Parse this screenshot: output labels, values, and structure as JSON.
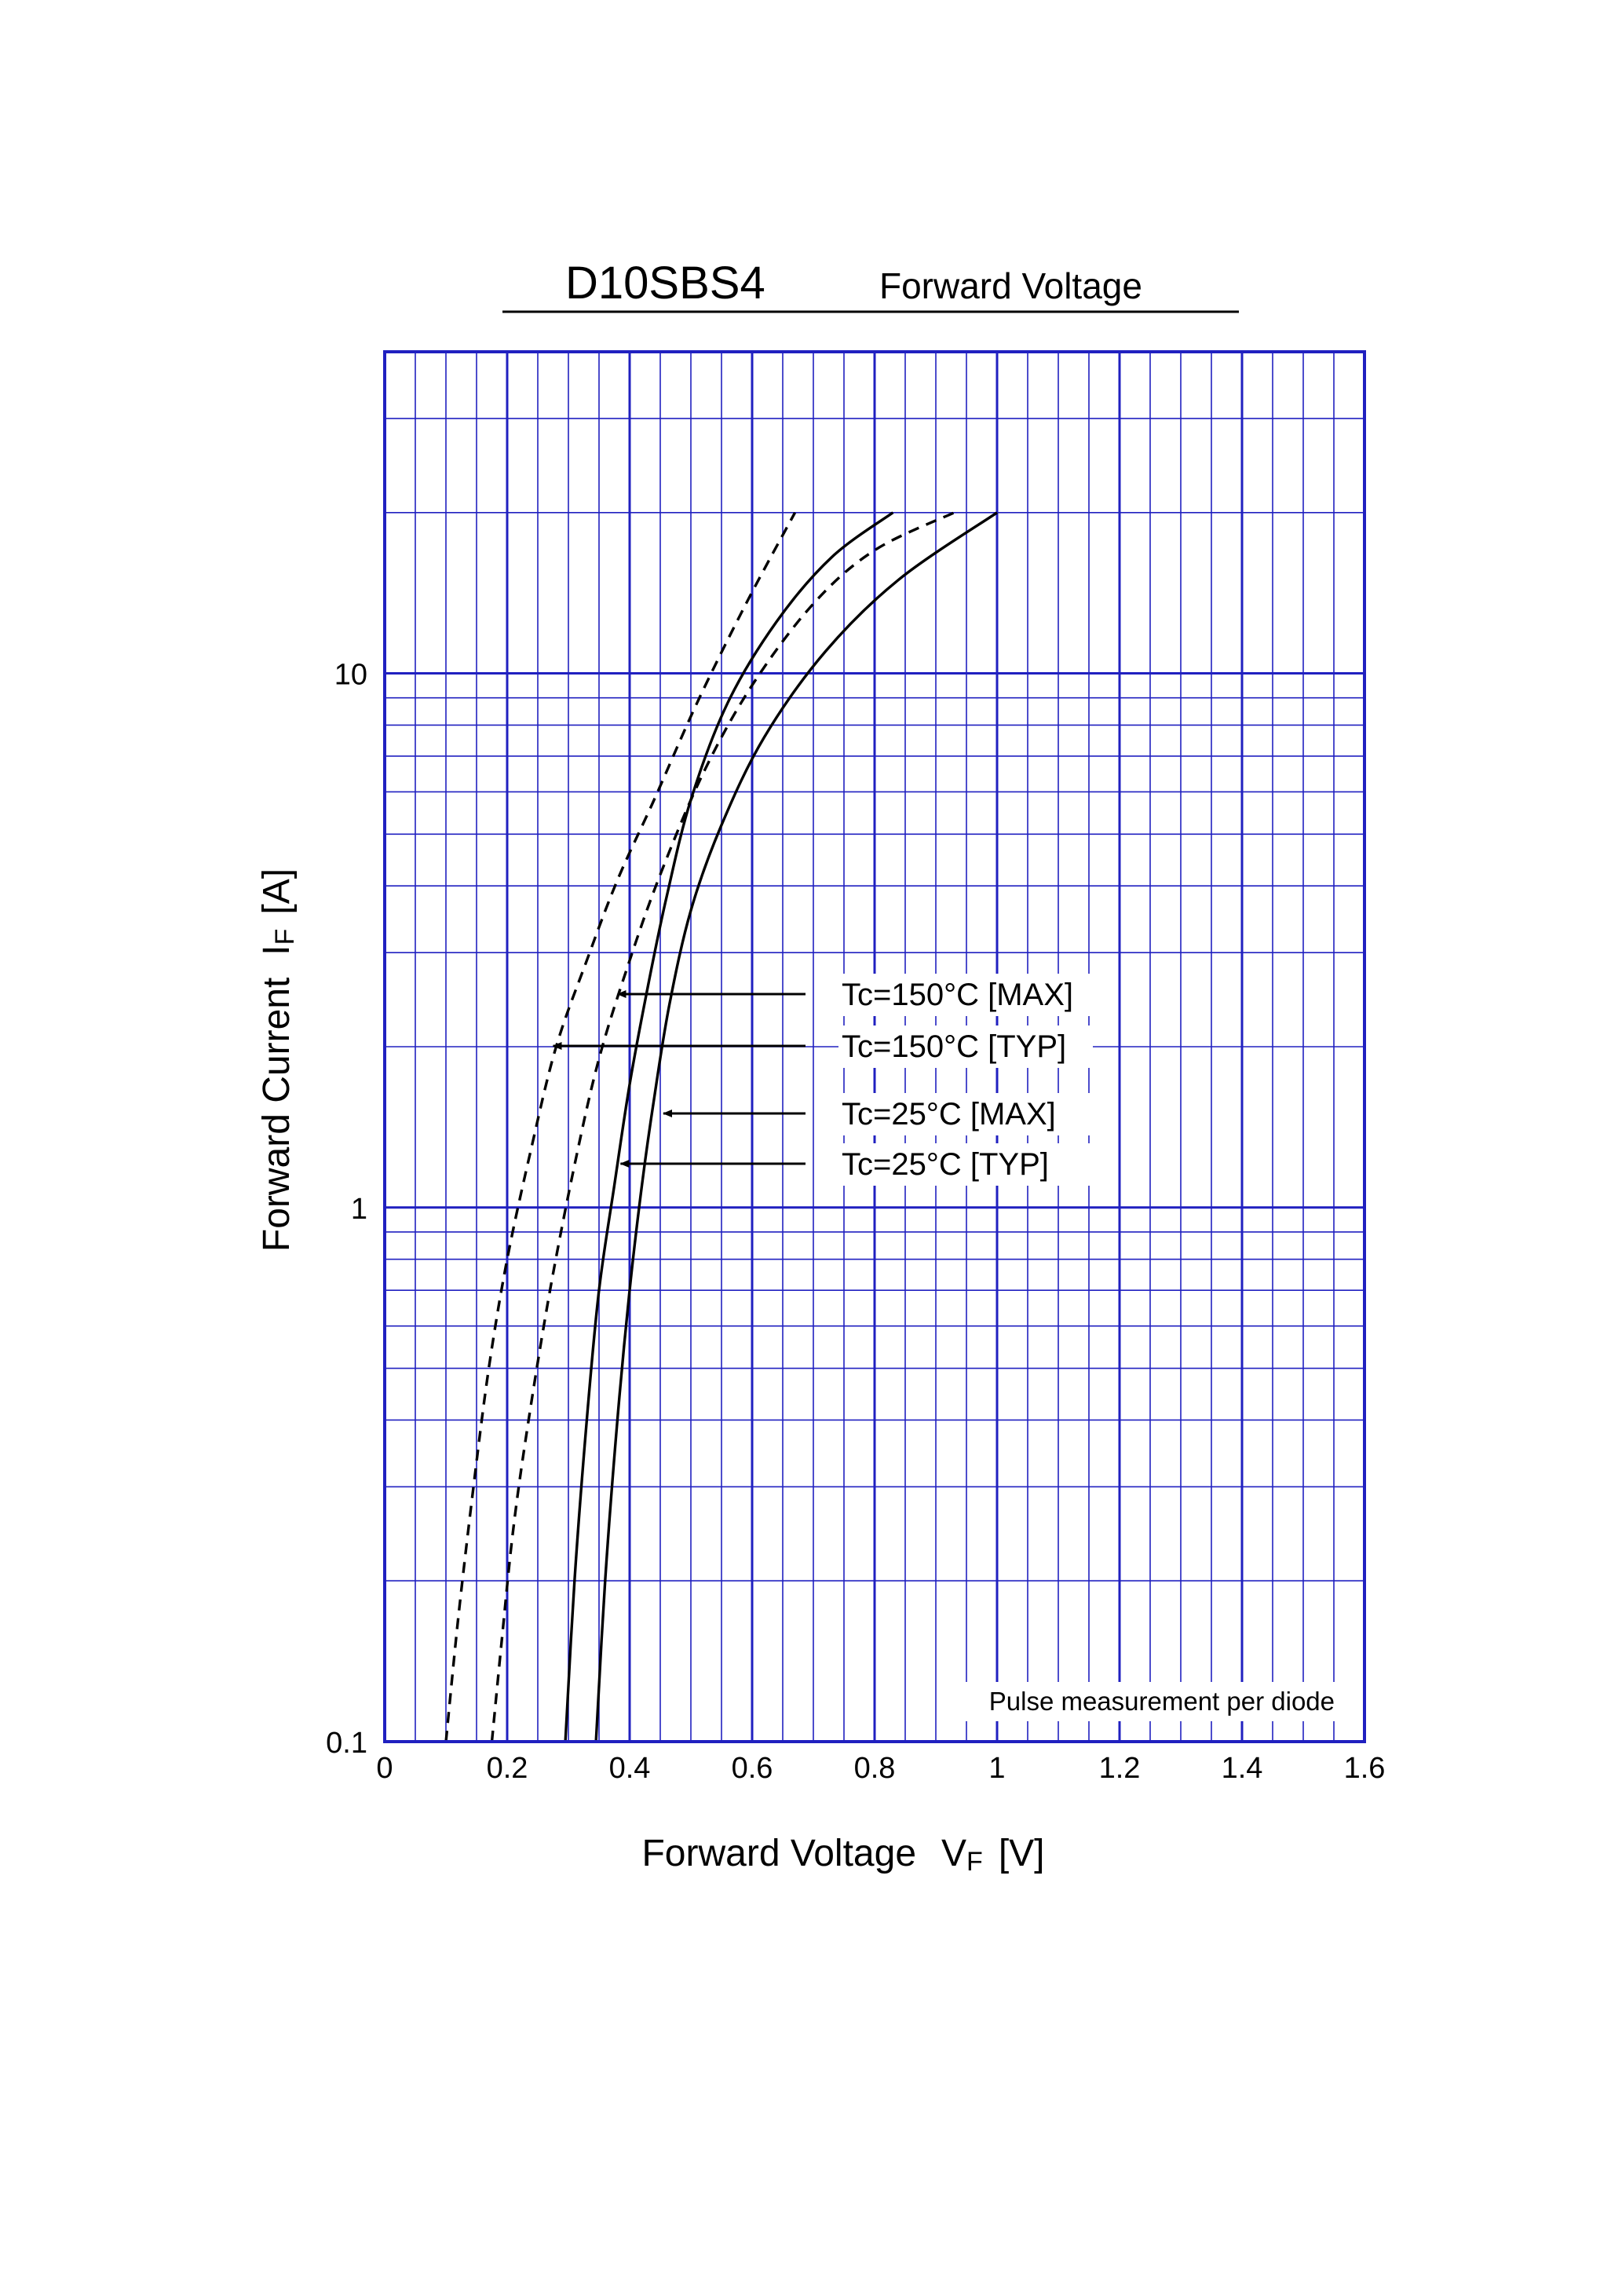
{
  "chart_data": {
    "type": "line",
    "title": "D10SBS4",
    "subtitle": "Forward  Voltage",
    "xlabel": "Forward Voltage",
    "xlabel_symbol": "V",
    "xlabel_subscript": "F",
    "xlabel_unit": "[V]",
    "ylabel": "Forward Current",
    "ylabel_symbol": "I",
    "ylabel_subscript": "F",
    "ylabel_unit": "[A]",
    "xlim": [
      0,
      1.6
    ],
    "ylim": [
      0.1,
      40
    ],
    "yscale": "log",
    "grid": true,
    "x_ticks": [
      "0",
      "0.2",
      "0.4",
      "0.6",
      "0.8",
      "1",
      "1.2",
      "1.4",
      "1.6"
    ],
    "y_ticks": [
      "0.1",
      "1",
      "10"
    ],
    "annotation": "Pulse  measurement  per  diode",
    "colors": {
      "grid": "#2020c0",
      "curve": "#000000",
      "background": "#ffffff"
    },
    "series": [
      {
        "name": "Tc=150°C [MAX]",
        "style": "dashed",
        "x": [
          0.175,
          0.19,
          0.21,
          0.235,
          0.27,
          0.31,
          0.35,
          0.4,
          0.45,
          0.52,
          0.6,
          0.7,
          0.8,
          0.93
        ],
        "y": [
          0.1,
          0.15,
          0.25,
          0.4,
          0.7,
          1.2,
          1.9,
          2.9,
          4.2,
          6.5,
          9.5,
          13.5,
          17,
          20
        ]
      },
      {
        "name": "Tc=150°C [TYP]",
        "style": "dashed",
        "x": [
          0.1,
          0.12,
          0.145,
          0.17,
          0.2,
          0.24,
          0.28,
          0.33,
          0.38,
          0.44,
          0.51,
          0.59,
          0.67
        ],
        "y": [
          0.1,
          0.17,
          0.3,
          0.5,
          0.8,
          1.3,
          2.0,
          2.9,
          4.1,
          5.8,
          8.8,
          13.5,
          20
        ]
      },
      {
        "name": "Tc=25°C [MAX]",
        "style": "solid",
        "x": [
          0.345,
          0.36,
          0.38,
          0.4,
          0.42,
          0.44,
          0.465,
          0.5,
          0.55,
          0.62,
          0.72,
          0.84,
          1.0
        ],
        "y": [
          0.1,
          0.2,
          0.4,
          0.7,
          1.1,
          1.6,
          2.4,
          3.6,
          5.2,
          7.6,
          11,
          15,
          20
        ]
      },
      {
        "name": "Tc=25°C [TYP]",
        "style": "solid",
        "x": [
          0.295,
          0.31,
          0.33,
          0.35,
          0.375,
          0.4,
          0.43,
          0.46,
          0.5,
          0.56,
          0.64,
          0.73,
          0.83
        ],
        "y": [
          0.1,
          0.2,
          0.4,
          0.7,
          1.1,
          1.7,
          2.6,
          3.8,
          5.8,
          8.8,
          12.5,
          16.5,
          20
        ]
      }
    ],
    "legend": [
      {
        "label": "Tc=150°C [MAX]",
        "arrow_to": [
          0.375,
          2.65
        ]
      },
      {
        "label": "Tc=150°C [TYP]",
        "arrow_to": [
          0.27,
          2.1
        ]
      },
      {
        "label": "Tc=25°C [MAX]",
        "arrow_to": [
          0.45,
          1.55
        ]
      },
      {
        "label": "Tc=25°C [TYP]",
        "arrow_to": [
          0.38,
          1.25
        ]
      }
    ]
  }
}
